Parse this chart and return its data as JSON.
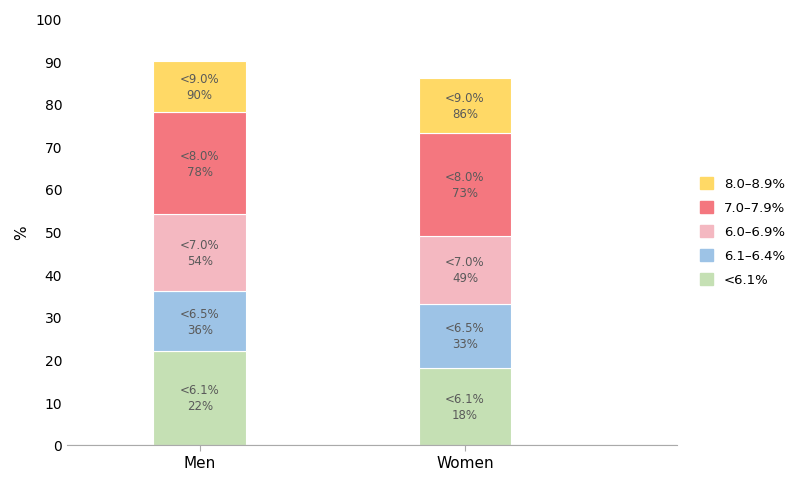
{
  "categories": [
    "Men",
    "Women"
  ],
  "segments": [
    {
      "label": "<6.1%",
      "legend_label": "<6.1%",
      "values": [
        22,
        18
      ],
      "color": "#c5e0b4",
      "text_labels": [
        "<6.1%\n22%",
        "<6.1%\n18%"
      ]
    },
    {
      "label": "6.1-6.4%",
      "legend_label": "6.1–6.4%",
      "values": [
        14,
        15
      ],
      "color": "#9dc3e6",
      "text_labels": [
        "<6.5%\n36%",
        "<6.5%\n33%"
      ]
    },
    {
      "label": "6.0-6.9%",
      "legend_label": "6.0–6.9%",
      "values": [
        18,
        16
      ],
      "color": "#f4b8c1",
      "text_labels": [
        "<7.0%\n54%",
        "<7.0%\n49%"
      ]
    },
    {
      "label": "7.0-7.9%",
      "legend_label": "7.0–7.9%",
      "values": [
        24,
        24
      ],
      "color": "#f4777f",
      "text_labels": [
        "<8.0%\n78%",
        "<8.0%\n73%"
      ]
    },
    {
      "label": "8.0-8.9%",
      "legend_label": "8.0–8.9%",
      "values": [
        12,
        13
      ],
      "color": "#ffd966",
      "text_labels": [
        "<9.0%\n90%",
        "<9.0%\n86%"
      ]
    }
  ],
  "ylabel": "%",
  "ylim": [
    0,
    100
  ],
  "yticks": [
    0,
    10,
    20,
    30,
    40,
    50,
    60,
    70,
    80,
    90,
    100
  ],
  "bar_width": 0.35,
  "bar_positions": [
    1,
    2
  ],
  "xlim": [
    0.5,
    2.8
  ],
  "background_color": "#ffffff",
  "text_color": "#5a5a5a",
  "text_fontsize": 8.5
}
